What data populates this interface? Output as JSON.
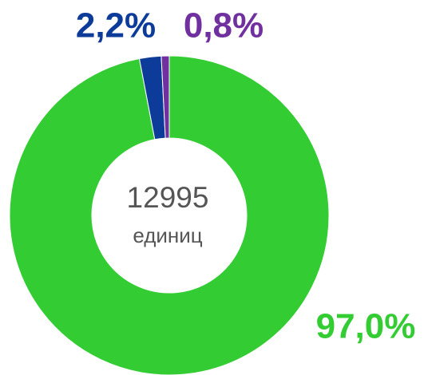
{
  "chart_data": {
    "type": "donut",
    "values": [
      97.0,
      2.2,
      0.8
    ],
    "value_labels": [
      "97,0%",
      "2,2%",
      "0,8%"
    ],
    "colors": [
      "#33cc33",
      "#0d3b99",
      "#7030a0"
    ],
    "center_value": 12995,
    "center_unit": "единиц"
  }
}
